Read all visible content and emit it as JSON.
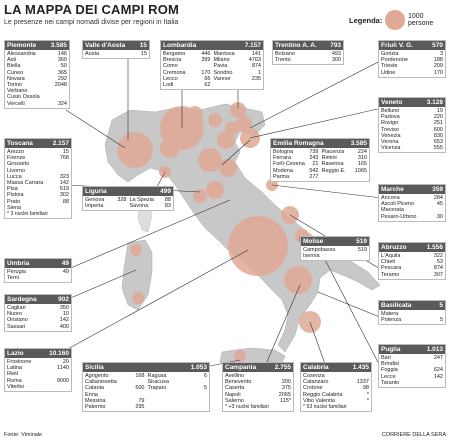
{
  "header": {
    "title": "LA MAPPA DEI CAMPI ROM",
    "subtitle": "Le presenze nei campi nomadi divise per regioni in Italia",
    "legend_label": "Legenda:",
    "legend_value": "1000 persone"
  },
  "footer": {
    "source": "Fonte: Viminale",
    "credit": "CORRIERE DELLA SERA"
  },
  "colors": {
    "bubble": "#e0a995",
    "land": "#c8c8c8",
    "header": "#5a5a5a"
  },
  "regions": {
    "piemonte": {
      "name": "Piemonte",
      "total": "3.585",
      "rows": [
        [
          "Alessandria",
          "146"
        ],
        [
          "Asti",
          "360"
        ],
        [
          "Biella",
          "50"
        ],
        [
          "Cuneo",
          "365"
        ],
        [
          "Novara",
          "292"
        ],
        [
          "Torino",
          "2048"
        ],
        [
          "Verbano",
          ""
        ],
        [
          "Cusio Ossola",
          ""
        ],
        [
          "Vercelli",
          "324"
        ]
      ]
    },
    "valle": {
      "name": "Valle d'Aosta",
      "total": "15",
      "rows": [
        [
          "Aosta",
          "15"
        ]
      ]
    },
    "lombardia": {
      "name": "Lombardia",
      "total": "7.157",
      "col1": [
        [
          "Bergamo",
          "446"
        ],
        [
          "Brescia",
          "399"
        ],
        [
          "Como",
          ""
        ],
        [
          "Cremona",
          "170"
        ],
        [
          "Lecco",
          "66"
        ],
        [
          "Lodi",
          "62"
        ]
      ],
      "col2": [
        [
          "Mantova",
          "141"
        ],
        [
          "Milano",
          "4763"
        ],
        [
          "Pavia",
          "874"
        ],
        [
          "Sondrio",
          "1"
        ],
        [
          "Varese",
          "235"
        ]
      ]
    },
    "trentino": {
      "name": "Trentino A. A.",
      "total": "793",
      "rows": [
        [
          "Bolzano",
          "493"
        ],
        [
          "Trento",
          "300"
        ]
      ]
    },
    "friuli": {
      "name": "Friuli V. G.",
      "total": "570",
      "rows": [
        [
          "Gorizia",
          "3"
        ],
        [
          "Pordenone",
          "188"
        ],
        [
          "Trieste",
          "209"
        ],
        [
          "Udine",
          "170"
        ]
      ]
    },
    "veneto": {
      "name": "Veneto",
      "total": "3.128",
      "rows": [
        [
          "Belluno",
          "19"
        ],
        [
          "Padova",
          "220"
        ],
        [
          "Rovigo",
          "251"
        ],
        [
          "Treviso",
          "600"
        ],
        [
          "Venezia",
          "830"
        ],
        [
          "Verona",
          "653"
        ],
        [
          "Vicenza",
          "555"
        ]
      ]
    },
    "emilia": {
      "name": "Emilia Romagna",
      "total": "3.585",
      "col1": [
        [
          "Bologna",
          "739"
        ],
        [
          "Ferrara",
          "243"
        ],
        [
          "Forlì-Cesena",
          "21"
        ],
        [
          "Modena",
          "542"
        ],
        [
          "Parma",
          "277"
        ]
      ],
      "col2": [
        [
          "Piacenza",
          "224"
        ],
        [
          "Rimini",
          "310"
        ],
        [
          "Ravenna",
          "165"
        ],
        [
          "Reggio E.",
          "1065"
        ]
      ]
    },
    "toscana": {
      "name": "Toscana",
      "total": "2.157",
      "rows": [
        [
          "Arezzo",
          "15"
        ],
        [
          "Firenze",
          "768"
        ],
        [
          "Grosseto",
          ""
        ],
        [
          "Livorno",
          ""
        ],
        [
          "Lucca",
          "323"
        ],
        [
          "Massa Carrara",
          "142"
        ],
        [
          "Pisa",
          "519"
        ],
        [
          "Pistoia",
          "302"
        ],
        [
          "Prato",
          "88"
        ],
        [
          "Siena",
          ""
        ]
      ],
      "note": "* 3 nuclei familiari"
    },
    "liguria": {
      "name": "Liguria",
      "total": "499",
      "col1": [
        [
          "Genova",
          "328"
        ],
        [
          "Imperia",
          ""
        ]
      ],
      "col2": [
        [
          "La Spezia",
          "88"
        ],
        [
          "Savona",
          "83"
        ]
      ]
    },
    "marche": {
      "name": "Marche",
      "total": "359",
      "rows": [
        [
          "Ancona",
          "284"
        ],
        [
          "Ascoli Piceno",
          "45"
        ],
        [
          "Macerata",
          ""
        ],
        [
          "Pesaro-Urbino",
          "30"
        ]
      ]
    },
    "umbria": {
      "name": "Umbria",
      "total": "49",
      "rows": [
        [
          "Perugia",
          "49"
        ],
        [
          "Terni",
          ""
        ]
      ]
    },
    "molise": {
      "name": "Molise",
      "total": "519",
      "rows": [
        [
          "Campobasso",
          "519"
        ],
        [
          "Isernia",
          ""
        ]
      ]
    },
    "abruzzo": {
      "name": "Abruzzo",
      "total": "1.556",
      "rows": [
        [
          "L'Aquila",
          "322"
        ],
        [
          "Chieti",
          "53"
        ],
        [
          "Pescara",
          "874"
        ],
        [
          "Teramo",
          "307"
        ]
      ]
    },
    "sardegna": {
      "name": "Sardegna",
      "total": "902",
      "rows": [
        [
          "Cagliari",
          "350"
        ],
        [
          "Nuoro",
          "10"
        ],
        [
          "Oristano",
          "142"
        ],
        [
          "Sassari",
          "400"
        ]
      ]
    },
    "basilicata": {
      "name": "Basilicata",
      "total": "5",
      "rows": [
        [
          "Matera",
          ""
        ],
        [
          "Potenza",
          "5"
        ]
      ]
    },
    "lazio": {
      "name": "Lazio",
      "total": "10.160",
      "rows": [
        [
          "Frosinone",
          "20"
        ],
        [
          "Latina",
          "1140"
        ],
        [
          "Rieti",
          ""
        ],
        [
          "Roma",
          "9000"
        ],
        [
          "Viterbo",
          ""
        ]
      ]
    },
    "sicilia": {
      "name": "Sicilia",
      "total": "1.053",
      "col1": [
        [
          "Agrigento",
          "168"
        ],
        [
          "Caltanissetta",
          ""
        ],
        [
          "Catania",
          "500"
        ],
        [
          "Enna",
          ""
        ],
        [
          "Messina",
          "79"
        ],
        [
          "Palermo",
          "295"
        ]
      ],
      "col2": [
        [
          "Ragusa",
          "6"
        ],
        [
          "Siracusa",
          ""
        ],
        [
          "Trapani",
          "5"
        ]
      ]
    },
    "campania": {
      "name": "Campania",
      "total": "2.755",
      "rows": [
        [
          "Avellino",
          ""
        ],
        [
          "Benevento",
          "200"
        ],
        [
          "Caserta",
          "375"
        ],
        [
          "Napoli",
          "2065"
        ],
        [
          "Salerno",
          "115*"
        ]
      ],
      "note": "* +3 nuclei familiari"
    },
    "calabria": {
      "name": "Calabria",
      "total": "1.435",
      "rows": [
        [
          "Cosenza",
          ""
        ],
        [
          "Catanzaro",
          "1337"
        ],
        [
          "Crotone",
          "98"
        ],
        [
          "Reggio Calabria",
          "*"
        ],
        [
          "Vibo Valentia",
          "*"
        ]
      ],
      "note": "* 53 nuclei familiari"
    },
    "puglia": {
      "name": "Puglia",
      "total": "1.013",
      "rows": [
        [
          "Bari",
          "247"
        ],
        [
          "Brindisi",
          ""
        ],
        [
          "Foggia",
          "624"
        ],
        [
          "Lecce",
          "142"
        ],
        [
          "Taranto",
          ""
        ]
      ]
    }
  }
}
